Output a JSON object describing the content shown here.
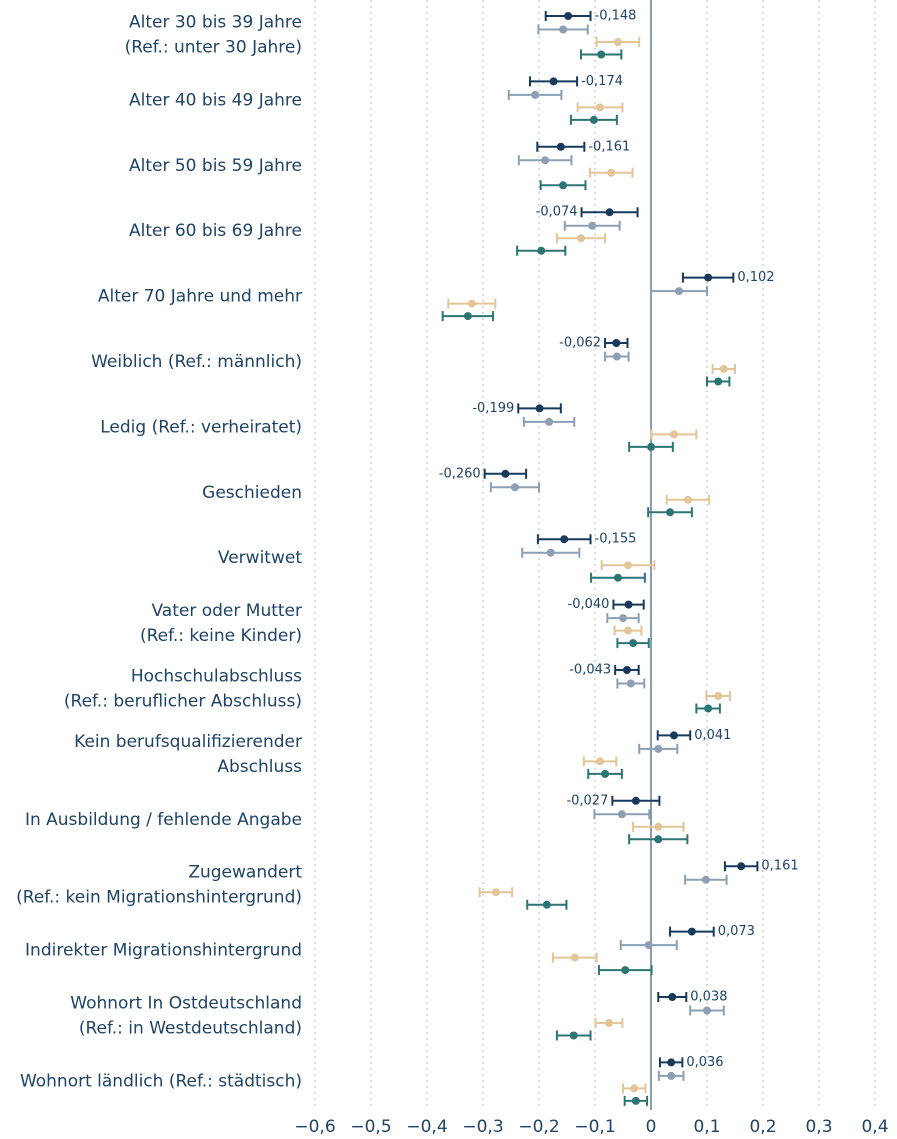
{
  "chart_data": {
    "type": "errorbar",
    "categories": [
      [
        "Alter 30 bis 39 Jahre",
        "(Ref.: unter 30 Jahre)"
      ],
      [
        "Alter 40 bis 49 Jahre"
      ],
      [
        "Alter 50 bis 59 Jahre"
      ],
      [
        "Alter 60 bis 69 Jahre"
      ],
      [
        "Alter 70 Jahre und mehr"
      ],
      [
        "Weiblich (Ref.: männlich)"
      ],
      [
        "Ledig (Ref.: verheiratet)"
      ],
      [
        "Geschieden"
      ],
      [
        "Verwitwet"
      ],
      [
        "Vater oder Mutter",
        "(Ref.: keine Kinder)"
      ],
      [
        "Hochschulabschluss",
        "(Ref.: beruflicher Abschluss)"
      ],
      [
        "Kein berufsqualifizierender",
        "Abschluss"
      ],
      [
        "In Ausbildung / fehlende Angabe"
      ],
      [
        "Zugewandert",
        "(Ref.: kein Migrationshintergrund)"
      ],
      [
        "Indirekter Migrationshintergrund"
      ],
      [
        "Wohnort In Ostdeutschland",
        "(Ref.: in Westdeutschland)"
      ],
      [
        "Wohnort ländlich (Ref.: städtisch)"
      ]
    ],
    "series": [
      {
        "color": "#173a5c",
        "values": [
          -0.148,
          -0.174,
          -0.161,
          -0.074,
          0.102,
          -0.062,
          -0.199,
          -0.26,
          -0.155,
          -0.04,
          -0.043,
          0.041,
          -0.027,
          0.161,
          0.073,
          0.038,
          0.036
        ],
        "errors": [
          0.04,
          0.042,
          0.042,
          0.05,
          0.045,
          0.02,
          0.038,
          0.037,
          0.047,
          0.027,
          0.021,
          0.029,
          0.042,
          0.029,
          0.039,
          0.025,
          0.02
        ],
        "value_labels": [
          "-0,148",
          "-0,174",
          "-0,161",
          "-0,074",
          "0,102",
          "-0,062",
          "-0,199",
          "-0,260",
          "-0,155",
          "-0,040",
          "-0,043",
          "0,041",
          "-0,027",
          "0,161",
          "0,073",
          "0,038",
          "0,036"
        ]
      },
      {
        "color": "#8c9fb4",
        "values": [
          -0.157,
          -0.207,
          -0.189,
          -0.105,
          0.05,
          -0.061,
          -0.182,
          -0.243,
          -0.179,
          -0.05,
          -0.036,
          0.013,
          -0.052,
          0.098,
          -0.004,
          0.1,
          0.036
        ],
        "errors": [
          0.044,
          0.047,
          0.047,
          0.049,
          0.05,
          0.021,
          0.045,
          0.043,
          0.051,
          0.028,
          0.024,
          0.034,
          0.049,
          0.037,
          0.05,
          0.03,
          0.022
        ]
      },
      {
        "color": "#e3c597",
        "values": [
          -0.059,
          -0.091,
          -0.071,
          -0.125,
          -0.32,
          0.13,
          0.041,
          0.066,
          -0.041,
          -0.041,
          0.12,
          -0.091,
          0.013,
          -0.277,
          -0.136,
          -0.075,
          -0.03
        ],
        "errors": [
          0.038,
          0.04,
          0.038,
          0.043,
          0.042,
          0.02,
          0.04,
          0.038,
          0.047,
          0.024,
          0.021,
          0.029,
          0.045,
          0.029,
          0.039,
          0.024,
          0.02
        ]
      },
      {
        "color": "#2b7575",
        "values": [
          -0.089,
          -0.102,
          -0.157,
          -0.196,
          -0.327,
          0.12,
          0,
          0.034,
          -0.059,
          -0.032,
          0.102,
          -0.082,
          0.013,
          -0.186,
          -0.046,
          -0.138,
          -0.027
        ],
        "errors": [
          0.036,
          0.041,
          0.04,
          0.043,
          0.045,
          0.02,
          0.039,
          0.039,
          0.048,
          0.028,
          0.021,
          0.03,
          0.052,
          0.035,
          0.047,
          0.03,
          0.02
        ]
      }
    ],
    "xlim": [
      -0.6,
      0.4
    ],
    "xticks": [
      {
        "value": -0.6,
        "label": "−0,6"
      },
      {
        "value": -0.5,
        "label": "−0,5"
      },
      {
        "value": -0.4,
        "label": "−0,4"
      },
      {
        "value": -0.3,
        "label": "−0,3"
      },
      {
        "value": -0.2,
        "label": "−0,2"
      },
      {
        "value": -0.1,
        "label": "−0,1"
      },
      {
        "value": 0,
        "label": "0"
      },
      {
        "value": 0.1,
        "label": "0,1"
      },
      {
        "value": 0.2,
        "label": "0,2"
      },
      {
        "value": 0.3,
        "label": "0,3"
      },
      {
        "value": 0.4,
        "label": "0,4"
      }
    ],
    "grid": true
  }
}
